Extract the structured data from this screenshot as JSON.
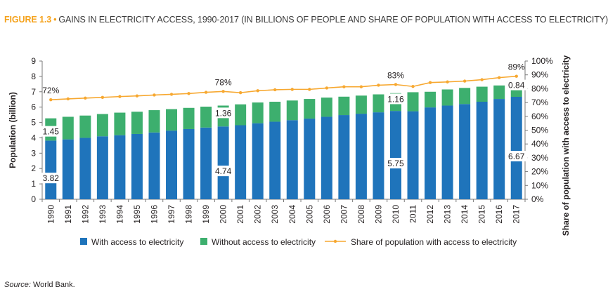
{
  "header": {
    "figure_label": "FIGURE 1.3",
    "separator": "•",
    "title": "GAINS IN ELECTRICITY ACCESS, 1990-2017 (IN BILLIONS OF PEOPLE AND SHARE OF POPULATION WITH ACCESS TO ELECTRICITY)"
  },
  "source": {
    "label": "Source:",
    "text": " World Bank."
  },
  "colors": {
    "with_access": "#1f74bb",
    "without_access": "#3daf6e",
    "share_line": "#f7a830",
    "axis": "#7a7a7a"
  },
  "chart_data": {
    "type": "bar",
    "stacked": true,
    "categories": [
      "1990",
      "1991",
      "1992",
      "1993",
      "1994",
      "1995",
      "1996",
      "1997",
      "1998",
      "1999",
      "2000",
      "2001",
      "2002",
      "2003",
      "2004",
      "2005",
      "2006",
      "2007",
      "2008",
      "2009",
      "2010",
      "2011",
      "2012",
      "2013",
      "2014",
      "2015",
      "2016",
      "2017"
    ],
    "series": [
      {
        "name": "With access to electricity",
        "values": [
          3.82,
          3.9,
          4.0,
          4.1,
          4.17,
          4.25,
          4.35,
          4.47,
          4.57,
          4.67,
          4.74,
          4.82,
          4.95,
          5.05,
          5.15,
          5.25,
          5.37,
          5.48,
          5.57,
          5.66,
          5.75,
          5.73,
          5.98,
          6.1,
          6.2,
          6.35,
          6.53,
          6.67
        ]
      },
      {
        "name": "Without access to electricity",
        "values": [
          1.45,
          1.47,
          1.45,
          1.45,
          1.47,
          1.45,
          1.45,
          1.4,
          1.38,
          1.36,
          1.36,
          1.36,
          1.35,
          1.3,
          1.28,
          1.28,
          1.25,
          1.2,
          1.18,
          1.17,
          1.16,
          1.24,
          1.02,
          1.05,
          1.05,
          0.98,
          0.88,
          0.84
        ]
      }
    ],
    "line_series": {
      "name": "Share of population with access to electricity",
      "values": [
        72,
        72.6,
        73.2,
        73.7,
        74.3,
        74.8,
        75.4,
        75.9,
        76.5,
        77.4,
        78,
        77.1,
        78.5,
        79.2,
        79.5,
        79.5,
        80.5,
        81.4,
        81.4,
        82.5,
        83,
        81.6,
        84.4,
        84.9,
        85.5,
        86.5,
        88,
        89
      ]
    },
    "bar_labels": [
      {
        "index": 0,
        "series": 0,
        "text": "3.82"
      },
      {
        "index": 0,
        "series": 1,
        "text": "1.45"
      },
      {
        "index": 10,
        "series": 0,
        "text": "4.74"
      },
      {
        "index": 10,
        "series": 1,
        "text": "1.36"
      },
      {
        "index": 20,
        "series": 0,
        "text": "5.75"
      },
      {
        "index": 20,
        "series": 1,
        "text": "1.16"
      },
      {
        "index": 27,
        "series": 0,
        "text": "6.67"
      },
      {
        "index": 27,
        "series": 1,
        "text": "0.84"
      }
    ],
    "line_labels": [
      {
        "index": 0,
        "text": "72%"
      },
      {
        "index": 10,
        "text": "78%"
      },
      {
        "index": 20,
        "text": "83%"
      },
      {
        "index": 27,
        "text": "89%"
      }
    ],
    "ylabel": "Population (billion)",
    "ylim": [
      0,
      9
    ],
    "yticks": [
      "0",
      "1",
      "2",
      "3",
      "4",
      "5",
      "6",
      "7",
      "8",
      "9"
    ],
    "y2label": "Share of population with access to electricity",
    "y2lim": [
      0,
      100
    ],
    "y2ticks": [
      "0%",
      "10%",
      "20%",
      "30%",
      "40%",
      "50%",
      "60%",
      "70%",
      "80%",
      "90%",
      "100%"
    ],
    "grid": false,
    "legend_position": "bottom"
  }
}
